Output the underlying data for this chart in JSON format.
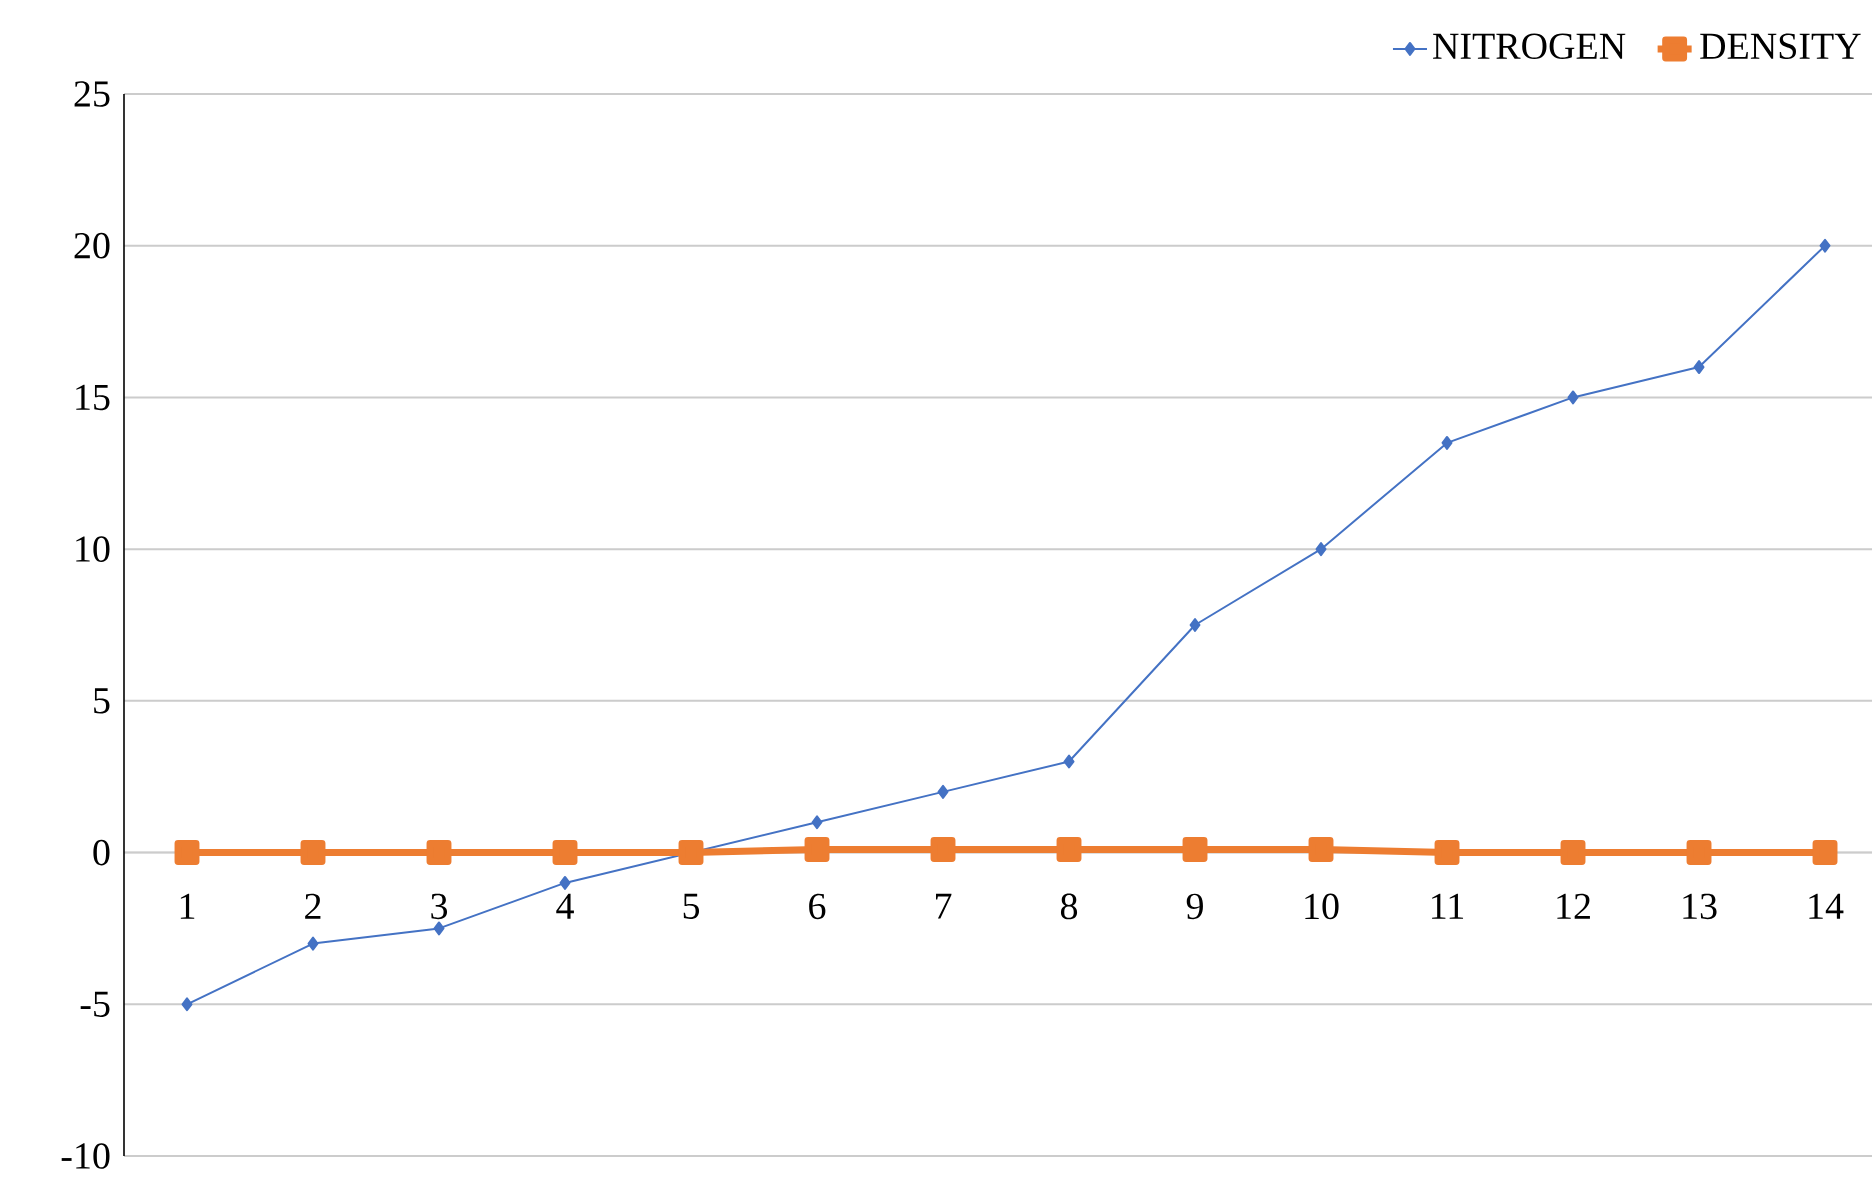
{
  "chart_data": {
    "type": "line",
    "categories": [
      "1",
      "2",
      "3",
      "4",
      "5",
      "6",
      "7",
      "8",
      "9",
      "10",
      "11",
      "12",
      "13",
      "14"
    ],
    "series": [
      {
        "name": "NITROGEN",
        "color": "#4472c4",
        "marker": "diamond",
        "values": [
          -5,
          -3,
          -2.5,
          -1,
          0,
          1,
          2,
          3,
          7.5,
          10,
          13.5,
          15,
          16,
          20
        ]
      },
      {
        "name": "DENSITY",
        "color": "#ed7d31",
        "marker": "square",
        "values": [
          0,
          0,
          0,
          0,
          0,
          0.1,
          0.1,
          0.1,
          0.1,
          0.1,
          0,
          0,
          0,
          0
        ]
      }
    ],
    "ylim": [
      -10,
      25
    ],
    "yticks": [
      -10,
      -5,
      0,
      5,
      10,
      15,
      20,
      25
    ],
    "grid": "y",
    "legend": "top right",
    "line_style": "solid"
  }
}
